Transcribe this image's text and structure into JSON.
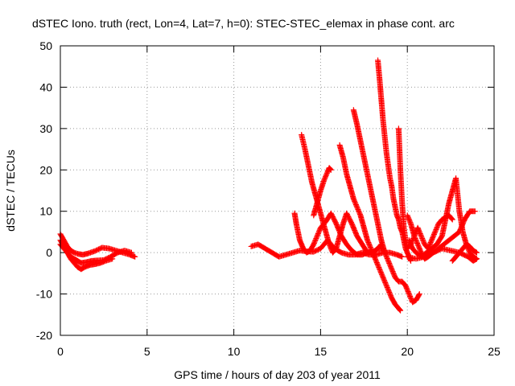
{
  "chart_data": {
    "type": "scatter",
    "title": "dSTEC Iono. truth (rect, Lon=4, Lat=7, h=0): STEC-STEC_elemax in phase cont. arc",
    "xlabel": "GPS time / hours of day 203 of year 2011",
    "ylabel": "dSTEC  / TECUs",
    "xlim": [
      0,
      25
    ],
    "ylim": [
      -20,
      50
    ],
    "xticks": [
      0,
      5,
      10,
      15,
      20,
      25
    ],
    "yticks": [
      -20,
      -10,
      0,
      10,
      20,
      30,
      40,
      50
    ],
    "grid": true,
    "marker": "+",
    "color": "#ff0000",
    "series": [
      {
        "x": [
          0.0,
          0.2,
          0.4,
          0.6,
          0.8,
          1.0,
          1.3,
          1.6,
          2.0,
          2.4,
          2.8,
          3.2,
          3.6,
          4.0,
          4.3
        ],
        "y": [
          4.5,
          3.0,
          1.5,
          0.5,
          0.0,
          -0.3,
          -0.5,
          -0.2,
          0.4,
          1.2,
          1.0,
          0.5,
          0.0,
          -0.5,
          -1.0
        ]
      },
      {
        "x": [
          0.0,
          0.2,
          0.4,
          0.6,
          0.8,
          1.0,
          1.2,
          1.5,
          1.8,
          2.1,
          2.5,
          2.9,
          3.3,
          3.7,
          4.1
        ],
        "y": [
          2.0,
          1.0,
          0.0,
          -1.0,
          -1.5,
          -2.0,
          -2.5,
          -2.3,
          -2.0,
          -1.9,
          -1.8,
          -1.0,
          0.0,
          0.5,
          0.0
        ]
      },
      {
        "x": [
          0.0,
          0.2,
          0.4,
          0.6,
          0.8,
          1.0,
          1.2,
          1.4,
          1.7,
          2.0,
          2.3,
          2.6,
          3.0
        ],
        "y": [
          3.0,
          1.5,
          0.0,
          -1.5,
          -2.5,
          -3.5,
          -4.0,
          -3.5,
          -3.0,
          -2.8,
          -2.5,
          -2.0,
          -1.5
        ]
      },
      {
        "x": [
          11.0,
          11.4,
          11.8,
          12.2,
          12.6,
          13.0,
          13.4,
          13.8,
          14.2,
          14.6,
          15.0,
          15.4,
          15.8,
          16.2,
          16.6,
          17.0,
          17.4,
          17.8,
          18.2,
          18.6,
          19.0,
          19.4,
          19.7
        ],
        "y": [
          1.5,
          2.0,
          1.0,
          0.0,
          -1.0,
          -0.5,
          0.0,
          0.5,
          0.3,
          0.2,
          1.0,
          3.0,
          1.0,
          0.0,
          -0.5,
          -0.5,
          0.0,
          -0.5,
          -0.5,
          0.0,
          0.0,
          -0.5,
          -1.0
        ]
      },
      {
        "x": [
          13.5,
          13.6,
          13.7,
          13.8,
          13.9,
          14.0,
          14.2,
          14.4,
          14.6,
          14.8,
          15.0,
          15.3,
          15.6,
          15.9,
          16.2,
          16.5,
          16.8,
          17.1,
          17.4,
          17.7,
          18.0,
          18.3,
          18.6
        ],
        "y": [
          9.5,
          7.0,
          5.0,
          3.0,
          2.0,
          1.0,
          0.0,
          0.5,
          2.0,
          4.0,
          6.0,
          7.5,
          9.5,
          7.0,
          4.0,
          2.0,
          0.5,
          -0.5,
          -0.5,
          0.0,
          0.0,
          1.0,
          1.0
        ]
      },
      {
        "x": [
          13.9,
          14.1,
          14.3,
          14.5,
          14.7,
          14.9,
          15.1,
          15.3,
          15.5,
          15.7,
          15.9,
          16.1,
          16.3,
          16.5,
          16.8,
          17.1,
          17.4,
          17.7,
          18.0,
          18.3,
          18.5
        ],
        "y": [
          28.5,
          25.0,
          21.0,
          17.0,
          14.0,
          11.0,
          8.0,
          5.0,
          2.0,
          0.0,
          1.0,
          4.0,
          7.0,
          9.5,
          7.0,
          4.0,
          2.0,
          0.0,
          0.0,
          1.0,
          2.0
        ]
      },
      {
        "x": [
          14.6,
          14.8,
          15.0,
          15.2,
          15.4,
          15.5,
          15.6
        ],
        "y": [
          9.0,
          12.0,
          15.0,
          17.5,
          19.5,
          20.5,
          20.0
        ]
      },
      {
        "x": [
          16.1,
          16.3,
          16.5,
          16.7,
          16.9,
          17.1,
          17.3,
          17.5,
          17.7,
          17.9,
          18.1,
          18.3,
          18.5,
          18.7,
          18.9,
          19.1,
          19.3,
          19.5,
          19.6
        ],
        "y": [
          26.0,
          23.0,
          19.0,
          16.0,
          13.0,
          11.0,
          9.0,
          6.0,
          3.0,
          1.0,
          -1.0,
          -3.0,
          -5.0,
          -7.0,
          -9.0,
          -11.0,
          -12.5,
          -13.5,
          -14.0
        ]
      },
      {
        "x": [
          16.9,
          17.1,
          17.3,
          17.5,
          17.7,
          17.9,
          18.1,
          18.3,
          18.5,
          18.7,
          18.9,
          19.1,
          19.3,
          19.5,
          19.7,
          19.9,
          20.1,
          20.3,
          20.5,
          20.7
        ],
        "y": [
          34.5,
          31.0,
          27.0,
          23.0,
          19.0,
          15.0,
          11.0,
          7.0,
          3.0,
          0.0,
          -2.0,
          -4.0,
          -6.0,
          -7.0,
          -7.0,
          -8.0,
          -10.0,
          -12.0,
          -11.5,
          -10.0
        ]
      },
      {
        "x": [
          18.3,
          18.4,
          18.5,
          18.6,
          18.7,
          18.8,
          18.9,
          19.0,
          19.1,
          19.2,
          19.3,
          19.4,
          19.5,
          19.6,
          19.7,
          19.8,
          19.9,
          20.0,
          20.1,
          20.2
        ],
        "y": [
          46.5,
          42.0,
          37.0,
          32.0,
          28.0,
          24.0,
          21.0,
          18.0,
          16.0,
          13.0,
          11.0,
          9.0,
          8.0,
          6.0,
          5.0,
          3.0,
          1.0,
          0.0,
          -1.0,
          -2.0
        ]
      },
      {
        "x": [
          19.5,
          19.6,
          19.7,
          19.8,
          19.9,
          20.0,
          20.2,
          20.4,
          20.6,
          20.8,
          21.0,
          21.2,
          21.4,
          21.6,
          21.8,
          22.0,
          22.2,
          22.4,
          22.6
        ],
        "y": [
          30.0,
          20.0,
          12.0,
          6.0,
          3.0,
          1.0,
          2.0,
          4.0,
          6.0,
          4.0,
          2.0,
          1.0,
          3.0,
          5.0,
          7.0,
          8.0,
          8.5,
          9.0,
          8.0
        ]
      },
      {
        "x": [
          20.0,
          20.2,
          20.4,
          20.6,
          20.8,
          21.0,
          21.2,
          21.5,
          21.8,
          22.1,
          22.4,
          22.7,
          23.0,
          23.3,
          23.6,
          23.9
        ],
        "y": [
          9.0,
          7.0,
          4.0,
          2.0,
          0.0,
          -1.5,
          -1.0,
          0.0,
          1.0,
          2.0,
          3.0,
          4.0,
          5.0,
          8.0,
          10.0,
          10.0
        ]
      },
      {
        "x": [
          20.1,
          20.3,
          20.5,
          20.8,
          21.1,
          21.4,
          21.7,
          22.0,
          22.2,
          22.4,
          22.6,
          22.8,
          23.0,
          23.2,
          23.4,
          23.6,
          23.8,
          24.0
        ],
        "y": [
          3.0,
          1.0,
          0.0,
          -1.0,
          0.0,
          1.0,
          2.0,
          4.0,
          8.0,
          12.0,
          15.0,
          18.0,
          10.0,
          5.0,
          2.0,
          0.0,
          -1.0,
          -1.5
        ]
      },
      {
        "x": [
          20.0,
          20.5,
          21.0,
          21.5,
          22.0,
          22.5,
          23.0,
          23.5,
          23.8,
          24.0
        ],
        "y": [
          -1.0,
          -1.5,
          -1.0,
          0.0,
          1.0,
          0.5,
          0.0,
          -1.0,
          -2.0,
          -1.5
        ]
      },
      {
        "x": [
          22.6,
          22.8,
          23.0,
          23.2,
          23.4,
          23.6,
          23.8,
          24.0
        ],
        "y": [
          -2.0,
          -1.0,
          0.0,
          1.0,
          2.0,
          1.5,
          0.5,
          0.0
        ]
      }
    ]
  }
}
